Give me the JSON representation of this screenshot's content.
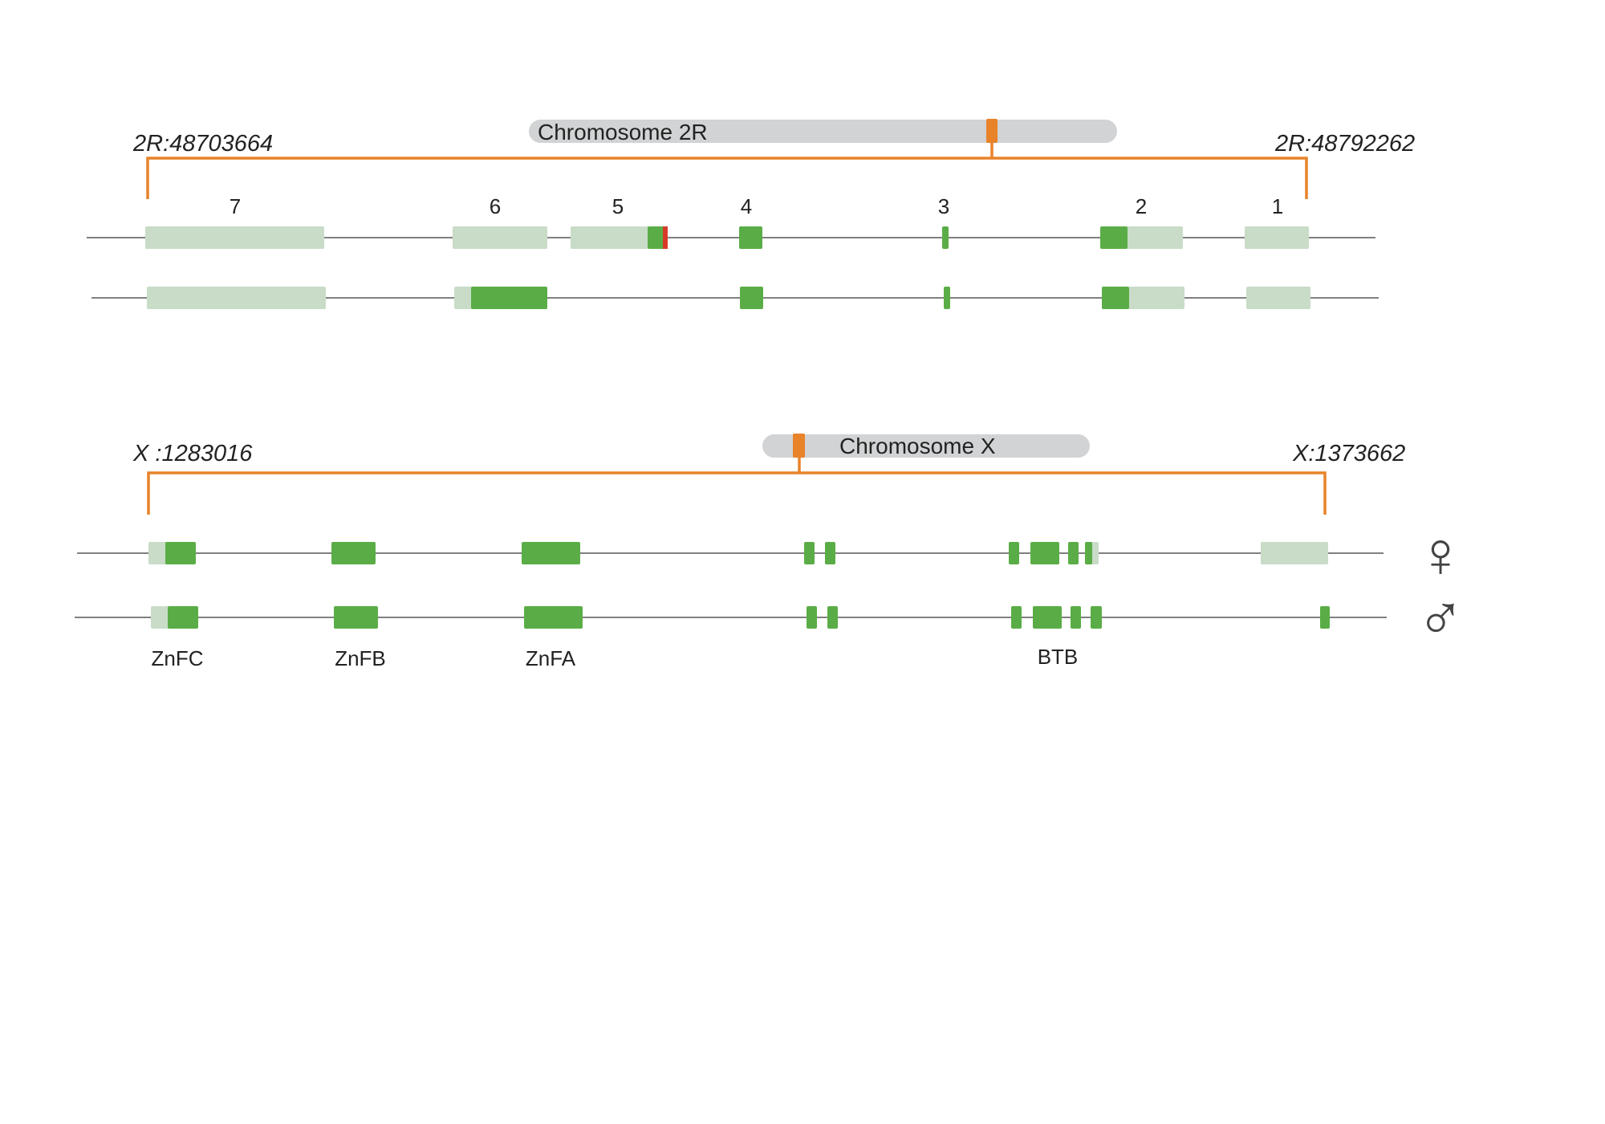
{
  "colors": {
    "chromosome_bar": "#d1d3d4",
    "locus_marker": "#e8832a",
    "bracket": "#e8832a",
    "intron_line": "#808080",
    "utr": "#c8dcc8",
    "cds": "#5aad46",
    "stop_codon": "#d83a2a",
    "text": "#222222"
  },
  "panels": [
    {
      "id": "chr2r",
      "chromosome": {
        "label": "Chromosome 2R",
        "marker_position": 0.8
      },
      "region_start": "2R:48703664",
      "region_end": "2R:48792262",
      "exon_numbers": [
        "7",
        "6",
        "5",
        "4",
        "3",
        "2",
        "1"
      ],
      "domain_labels": [],
      "transcript_symbols": []
    },
    {
      "id": "chrx",
      "chromosome": {
        "label": "Chromosome X",
        "marker_position": 0.11
      },
      "region_start": "X :1283016",
      "region_end": "X:1373662",
      "exon_numbers": [],
      "domain_labels": [
        "ZnFC",
        "ZnFB",
        "ZnFA",
        "BTB"
      ],
      "transcript_symbols": [
        {
          "symbol": "♀",
          "meaning": "female-icon"
        },
        {
          "symbol": "♂",
          "meaning": "male-icon"
        }
      ]
    }
  ]
}
